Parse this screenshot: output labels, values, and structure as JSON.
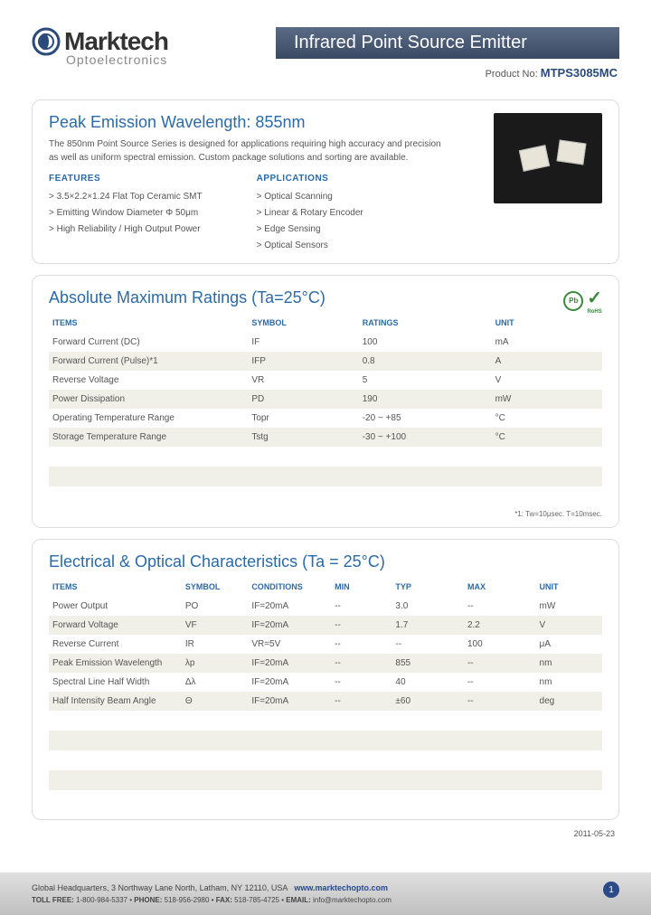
{
  "header": {
    "brand": "Marktech",
    "subbrand": "Optoelectronics",
    "title": "Infrared Point Source Emitter",
    "product_label": "Product No:",
    "product_no": "MTPS3085MC"
  },
  "intro": {
    "title": "Peak Emission Wavelength: 855nm",
    "text": "The 850nm Point Source Series is designed for applications requiring high accuracy and precision as well as uniform spectral emission. Custom package solutions and sorting are available.",
    "features_heading": "FEATURES",
    "features": [
      "> 3.5×2.2×1.24 Flat Top Ceramic SMT",
      "> Emitting Window Diameter Φ 50μm",
      "> High Reliability / High Output Power"
    ],
    "applications_heading": "APPLICATIONS",
    "applications": [
      "> Optical Scanning",
      "> Linear & Rotary Encoder",
      "> Edge Sensing",
      "> Optical Sensors"
    ]
  },
  "ratings": {
    "title": "Absolute Maximum Ratings (Ta=25°C)",
    "columns": [
      "ITEMS",
      "SYMBOL",
      "RATINGS",
      "UNIT"
    ],
    "rows": [
      [
        "Forward Current (DC)",
        "IF",
        "100",
        "mA"
      ],
      [
        "Forward Current (Pulse)*1",
        "IFP",
        "0.8",
        "A"
      ],
      [
        "Reverse Voltage",
        "VR",
        "5",
        "V"
      ],
      [
        "Power Dissipation",
        "PD",
        "190",
        "mW"
      ],
      [
        "Operating Temperature Range",
        "Topr",
        "-20 ~ +85",
        "°C"
      ],
      [
        "Storage Temperature Range",
        "Tstg",
        "-30 ~ +100",
        "°C"
      ]
    ],
    "footnote": "*1: Tw=10μsec. T=10msec.",
    "col_widths": [
      "36%",
      "20%",
      "24%",
      "20%"
    ]
  },
  "electrical": {
    "title": "Electrical & Optical Characteristics (Ta = 25°C)",
    "columns": [
      "ITEMS",
      "SYMBOL",
      "CONDITIONS",
      "MIN",
      "TYP",
      "MAX",
      "UNIT"
    ],
    "rows": [
      [
        "Power Output",
        "PO",
        "IF=20mA",
        "--",
        "3.0",
        "--",
        "mW"
      ],
      [
        "Forward Voltage",
        "VF",
        "IF=20mA",
        "--",
        "1.7",
        "2.2",
        "V"
      ],
      [
        "Reverse Current",
        "IR",
        "VR=5V",
        "--",
        "--",
        "100",
        "μA"
      ],
      [
        "Peak Emission Wavelength",
        "λp",
        "IF=20mA",
        "--",
        "855",
        "--",
        "nm"
      ],
      [
        "Spectral Line Half Width",
        "Δλ",
        "IF=20mA",
        "--",
        "40",
        "--",
        "nm"
      ],
      [
        "Half Intensity Beam Angle",
        "Θ",
        "IF=20mA",
        "--",
        "±60",
        "--",
        "deg"
      ]
    ],
    "col_widths": [
      "24%",
      "12%",
      "15%",
      "11%",
      "13%",
      "13%",
      "12%"
    ]
  },
  "date": "2011-05-23",
  "footer": {
    "address": "Global Headquarters, 3 Northway Lane North, Latham, NY 12110, USA",
    "website": "www.marktechopto.com",
    "tollfree_label": "TOLL FREE:",
    "tollfree": "1-800-984-5337",
    "phone_label": "PHONE:",
    "phone": "518-956-2980",
    "fax_label": "FAX:",
    "fax": "518-785-4725",
    "email_label": "EMAIL:",
    "email": "info@marktechopto.com",
    "page": "1"
  },
  "colors": {
    "heading_blue": "#2a6aa8",
    "dark_blue": "#2a4a8a",
    "row_alt": "#f0f0e8",
    "footer_bg": "#d0d0d0"
  }
}
